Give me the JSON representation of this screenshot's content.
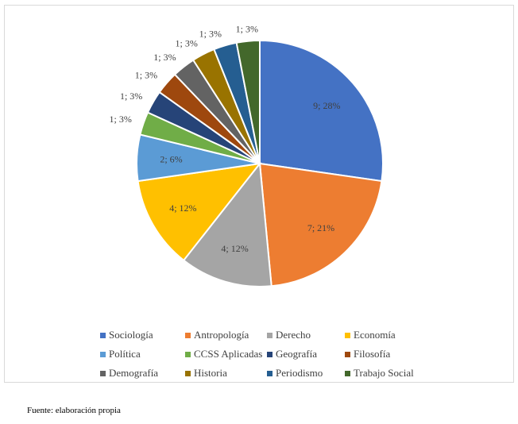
{
  "chart_data": {
    "type": "pie",
    "title": "",
    "slices": [
      {
        "name": "Sociología",
        "value": 9,
        "label": "9; 28%",
        "color": "#4472C4"
      },
      {
        "name": "Antropología",
        "value": 7,
        "label": "7; 21%",
        "color": "#ED7D31"
      },
      {
        "name": "Derecho",
        "value": 4,
        "label": "4; 12%",
        "color": "#A5A5A5"
      },
      {
        "name": "Economía",
        "value": 4,
        "label": "4; 12%",
        "color": "#FFC000"
      },
      {
        "name": "Política",
        "value": 2,
        "label": "2; 6%",
        "color": "#5B9BD5"
      },
      {
        "name": "CCSS Aplicadas",
        "value": 1,
        "label": "1; 3%",
        "color": "#70AD47"
      },
      {
        "name": "Geografía",
        "value": 1,
        "label": "1; 3%",
        "color": "#264478"
      },
      {
        "name": "Filosofía",
        "value": 1,
        "label": "1; 3%",
        "color": "#9E480E"
      },
      {
        "name": "Demografía",
        "value": 1,
        "label": "1; 3%",
        "color": "#636363"
      },
      {
        "name": "Historia",
        "value": 1,
        "label": "1; 3%",
        "color": "#997300"
      },
      {
        "name": "Periodismo",
        "value": 1,
        "label": "1; 3%",
        "color": "#255E91"
      },
      {
        "name": "Trabajo Social",
        "value": 1,
        "label": "1; 3%",
        "color": "#43682B"
      }
    ],
    "legend_position": "bottom"
  },
  "source_note": "Fuente: elaboración propia"
}
